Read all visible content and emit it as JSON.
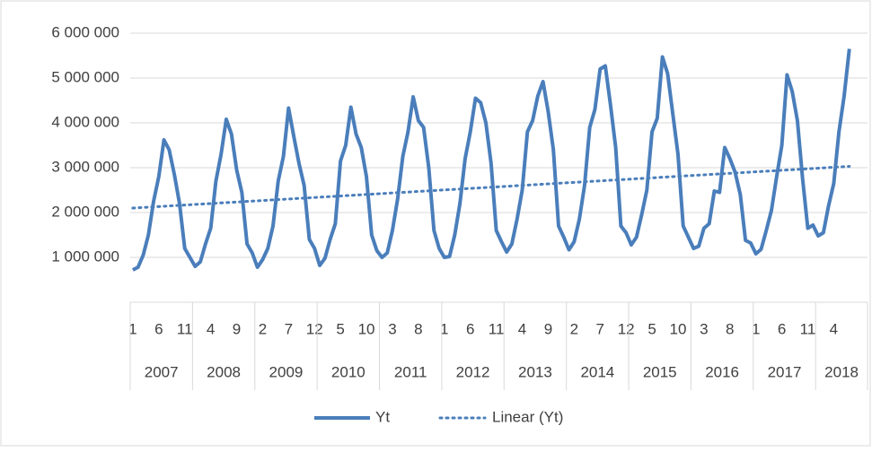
{
  "chart_data": {
    "type": "line",
    "categories": [
      "1",
      null,
      null,
      null,
      null,
      "6",
      null,
      null,
      null,
      null,
      "11",
      null,
      null,
      null,
      null,
      "4",
      null,
      null,
      null,
      null,
      "9",
      null,
      null,
      null,
      null,
      "2",
      null,
      null,
      null,
      null,
      "7",
      null,
      null,
      null,
      null,
      "12",
      null,
      null,
      null,
      null,
      "5",
      null,
      null,
      null,
      null,
      "10",
      null,
      null,
      null,
      null,
      "3",
      null,
      null,
      null,
      null,
      "8",
      null,
      null,
      null,
      null,
      "1",
      null,
      null,
      null,
      null,
      "6",
      null,
      null,
      null,
      null,
      "11",
      null,
      null,
      null,
      null,
      "4",
      null,
      null,
      null,
      null,
      "9",
      null,
      null,
      null,
      null,
      "2",
      null,
      null,
      null,
      null,
      "7",
      null,
      null,
      null,
      null,
      "12",
      null,
      null,
      null,
      null,
      "5",
      null,
      null,
      null,
      null,
      "10",
      null,
      null,
      null,
      null,
      "3",
      null,
      null,
      null,
      null,
      "8",
      null,
      null,
      null,
      null,
      "1",
      null,
      null,
      null,
      null,
      "6",
      null,
      null,
      null,
      null,
      "11",
      null,
      null,
      null,
      null,
      "4",
      null,
      null,
      null
    ],
    "groups": [
      "2007",
      "2008",
      "2009",
      "2010",
      "2011",
      "2012",
      "2013",
      "2014",
      "2015",
      "2016",
      "2017",
      "2018"
    ],
    "series": [
      {
        "name": "Yt",
        "color": "#4a7ebb",
        "values": [
          720000,
          780000,
          1050000,
          1500000,
          2250000,
          2800000,
          3620000,
          3400000,
          2850000,
          2200000,
          1200000,
          1000000,
          800000,
          900000,
          1300000,
          1650000,
          2700000,
          3300000,
          4080000,
          3750000,
          2950000,
          2450000,
          1300000,
          1100000,
          780000,
          950000,
          1200000,
          1700000,
          2700000,
          3250000,
          4330000,
          3700000,
          3100000,
          2600000,
          1400000,
          1200000,
          820000,
          980000,
          1400000,
          1750000,
          3150000,
          3500000,
          4350000,
          3750000,
          3450000,
          2800000,
          1500000,
          1150000,
          1000000,
          1100000,
          1600000,
          2300000,
          3250000,
          3800000,
          4580000,
          4050000,
          3900000,
          3000000,
          1600000,
          1200000,
          1000000,
          1020000,
          1500000,
          2200000,
          3200000,
          3800000,
          4550000,
          4450000,
          4000000,
          3100000,
          1600000,
          1350000,
          1120000,
          1300000,
          1850000,
          2500000,
          3800000,
          4050000,
          4600000,
          4920000,
          4250000,
          3400000,
          1700000,
          1450000,
          1170000,
          1350000,
          1850000,
          2600000,
          3900000,
          4300000,
          5200000,
          5270000,
          4400000,
          3450000,
          1700000,
          1550000,
          1280000,
          1450000,
          1950000,
          2500000,
          3800000,
          4100000,
          5470000,
          5100000,
          4200000,
          3300000,
          1700000,
          1450000,
          1200000,
          1250000,
          1650000,
          1750000,
          2480000,
          2450000,
          3450000,
          3200000,
          2900000,
          2400000,
          1380000,
          1320000,
          1080000,
          1180000,
          1600000,
          2050000,
          2800000,
          3500000,
          5070000,
          4700000,
          4050000,
          2750000,
          1650000,
          1720000,
          1480000,
          1550000,
          2150000,
          2650000,
          3800000,
          4600000,
          5650000
        ]
      }
    ],
    "trendline": {
      "name": "Linear (Yt)",
      "color": "#4a7ebb",
      "start": 2100000,
      "end": 3030000
    },
    "ylim": [
      0,
      6000000
    ],
    "yticks": [
      {
        "value": 1000000,
        "label": "1 000 000"
      },
      {
        "value": 2000000,
        "label": "2 000 000"
      },
      {
        "value": 3000000,
        "label": "3 000 000"
      },
      {
        "value": 4000000,
        "label": "4 000 000"
      },
      {
        "value": 5000000,
        "label": "5 000 000"
      },
      {
        "value": 6000000,
        "label": "6 000 000"
      }
    ],
    "grid": true,
    "legend": "bottom"
  }
}
